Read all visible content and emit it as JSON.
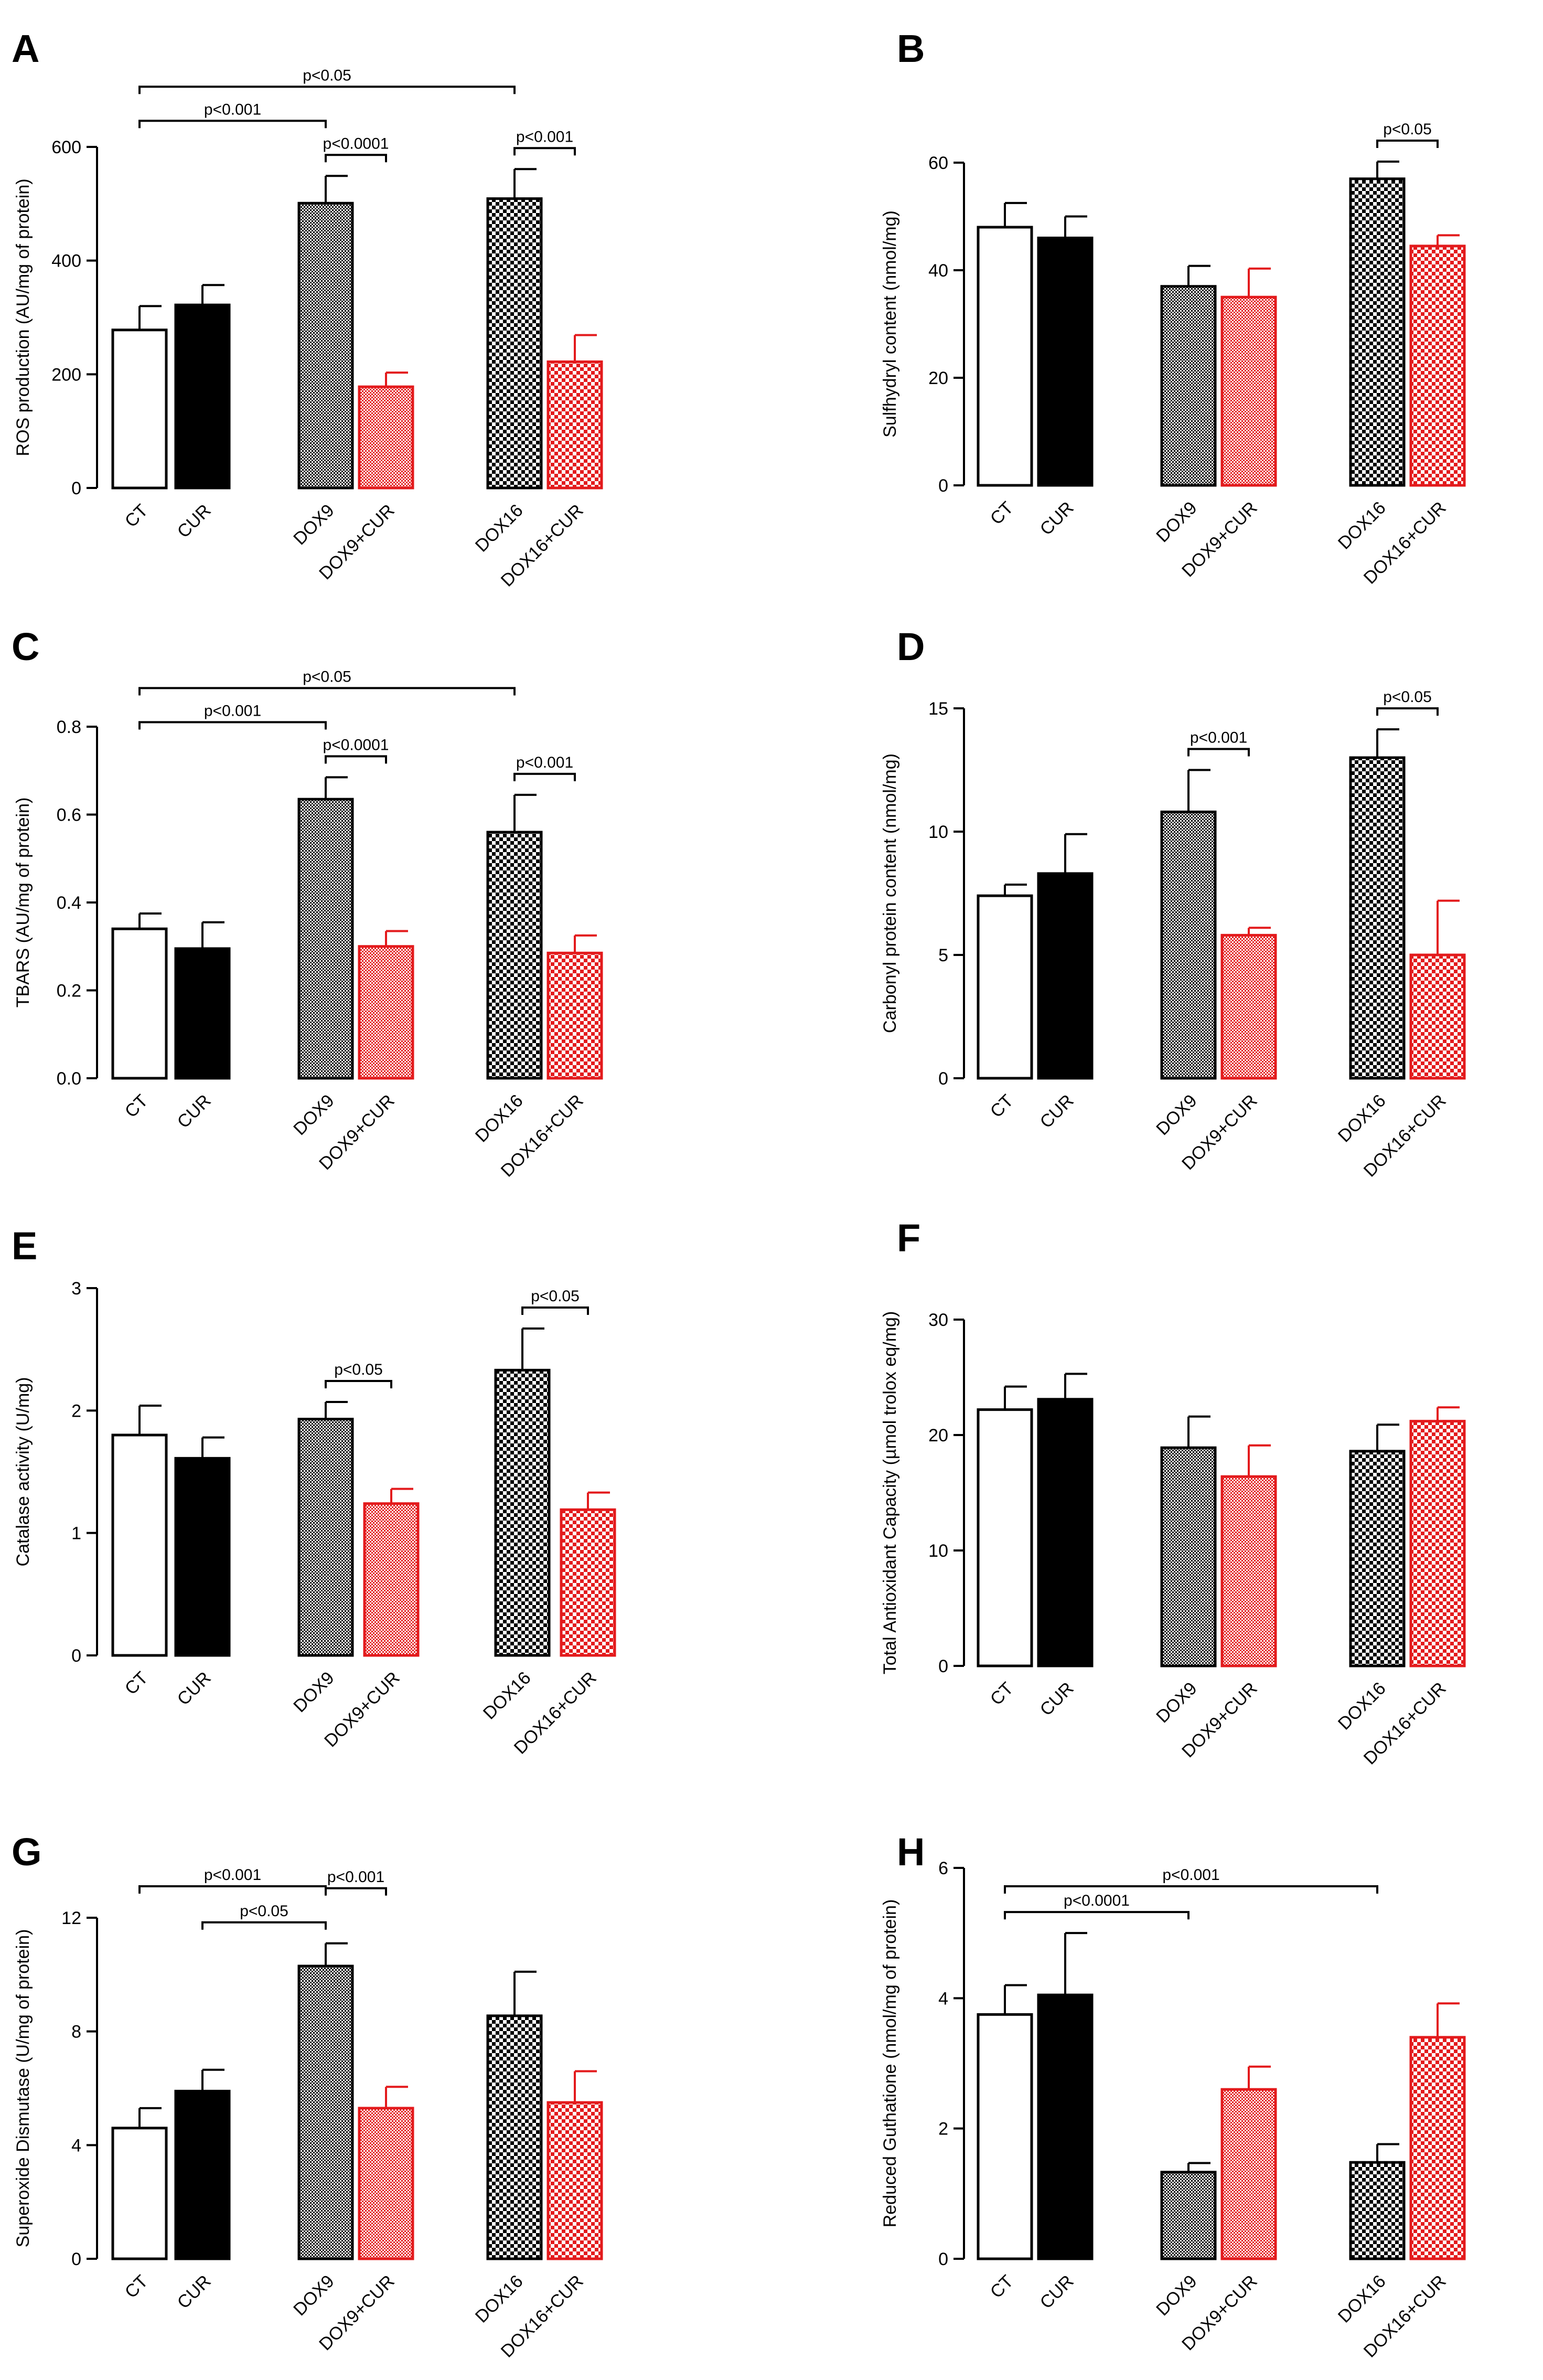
{
  "figure": {
    "categories": [
      "CT",
      "CUR",
      "DOX9",
      "DOX9+CUR",
      "DOX16",
      "DOX16+CUR"
    ],
    "colors": {
      "black": "#000000",
      "red": "#e31a1c",
      "white": "#ffffff"
    }
  },
  "chart_data": [
    {
      "panel": "A",
      "type": "bar",
      "ylabel": "ROS production (AU/mg of protein)",
      "ylim": [
        0,
        600
      ],
      "yticks": [
        0,
        200,
        400,
        600
      ],
      "values": [
        278,
        322,
        501,
        178,
        509,
        222
      ],
      "errors": [
        42,
        35,
        48,
        25,
        52,
        47
      ],
      "annotations": [
        {
          "from": 0,
          "to": 4,
          "text": "p<0.05"
        },
        {
          "from": 0,
          "to": 2,
          "text": "p<0.001"
        },
        {
          "from": 2,
          "to": 3,
          "text": "p<0.0001"
        },
        {
          "from": 4,
          "to": 5,
          "text": "p<0.001"
        }
      ]
    },
    {
      "panel": "B",
      "type": "bar",
      "ylabel": "Sulfhydryl content (nmol/mg)",
      "ylim": [
        0,
        60
      ],
      "yticks": [
        0,
        20,
        40,
        60
      ],
      "values": [
        48,
        46,
        37,
        35,
        57,
        44.5
      ],
      "errors": [
        4.5,
        4,
        3.8,
        5.3,
        3.2,
        2
      ],
      "annotations": [
        {
          "from": 4,
          "to": 5,
          "text": "p<0.05"
        }
      ]
    },
    {
      "panel": "C",
      "type": "bar",
      "ylabel": "TBARS (AU/mg of protein)",
      "ylim": [
        0,
        0.8
      ],
      "yticks": [
        "0.0",
        "0.2",
        "0.4",
        "0.6",
        "0.8"
      ],
      "values": [
        0.34,
        0.295,
        0.635,
        0.3,
        0.56,
        0.285
      ],
      "errors": [
        0.035,
        0.06,
        0.05,
        0.035,
        0.085,
        0.04
      ],
      "annotations": [
        {
          "from": 0,
          "to": 4,
          "text": "p<0.05"
        },
        {
          "from": 0,
          "to": 2,
          "text": "p<0.001"
        },
        {
          "from": 2,
          "to": 3,
          "text": "p<0.0001"
        },
        {
          "from": 4,
          "to": 5,
          "text": "p<0.001"
        }
      ]
    },
    {
      "panel": "D",
      "type": "bar",
      "ylabel": "Carbonyl protein content (nmol/mg)",
      "ylim": [
        0,
        15
      ],
      "yticks": [
        0,
        5,
        10,
        15
      ],
      "values": [
        7.4,
        8.3,
        10.8,
        5.8,
        13.0,
        5.0
      ],
      "errors": [
        0.45,
        1.6,
        1.7,
        0.3,
        1.15,
        2.2
      ],
      "annotations": [
        {
          "from": 2,
          "to": 3,
          "text": "p<0.001"
        },
        {
          "from": 4,
          "to": 5,
          "text": "p<0.05"
        }
      ]
    },
    {
      "panel": "E",
      "type": "bar",
      "ylabel": "Catalase activity (U/mg)",
      "ylim": [
        0,
        3
      ],
      "yticks": [
        0,
        1,
        2,
        3
      ],
      "values": [
        1.8,
        1.61,
        1.93,
        1.24,
        2.33,
        1.19
      ],
      "errors": [
        0.24,
        0.17,
        0.14,
        0.12,
        0.34,
        0.14
      ],
      "annotations": [
        {
          "from": 2,
          "to": 3,
          "text": "p<0.05"
        },
        {
          "from": 4,
          "to": 5,
          "text": "p<0.05"
        }
      ]
    },
    {
      "panel": "F",
      "type": "bar",
      "ylabel": "Total Antioxidant Capacity (µmol trolox eq/mg)",
      "ylim": [
        0,
        30
      ],
      "yticks": [
        0,
        10,
        20,
        30
      ],
      "values": [
        22.2,
        23.1,
        18.9,
        16.4,
        18.6,
        21.2
      ],
      "errors": [
        2.0,
        2.2,
        2.7,
        2.7,
        2.3,
        1.2
      ],
      "annotations": []
    },
    {
      "panel": "G",
      "type": "bar",
      "ylabel": "Superoxide Dismutase (U/mg of protein)",
      "ylim": [
        0,
        12
      ],
      "yticks": [
        0,
        4,
        8,
        12
      ],
      "values": [
        4.6,
        5.9,
        10.3,
        5.3,
        8.55,
        5.5
      ],
      "errors": [
        0.7,
        0.75,
        0.8,
        0.75,
        1.55,
        1.1
      ],
      "annotations": [
        {
          "from": 0,
          "to": 2,
          "text": "p<0.001"
        },
        {
          "from": 1,
          "to": 2,
          "text": "p<0.05"
        },
        {
          "from": 2,
          "to": 3,
          "text": "p<0.001"
        }
      ]
    },
    {
      "panel": "H",
      "type": "bar",
      "ylabel": "Reduced Guthatione (nmol/mg of protein)",
      "ylim": [
        0,
        6
      ],
      "yticks": [
        0,
        2,
        4,
        6
      ],
      "values": [
        3.75,
        4.05,
        1.33,
        2.6,
        1.48,
        3.4
      ],
      "errors": [
        0.45,
        0.95,
        0.14,
        0.35,
        0.28,
        0.52
      ],
      "annotations": [
        {
          "from": 0,
          "to": 4,
          "text": "p<0.001"
        },
        {
          "from": 0,
          "to": 2,
          "text": "p<0.0001"
        }
      ]
    }
  ]
}
